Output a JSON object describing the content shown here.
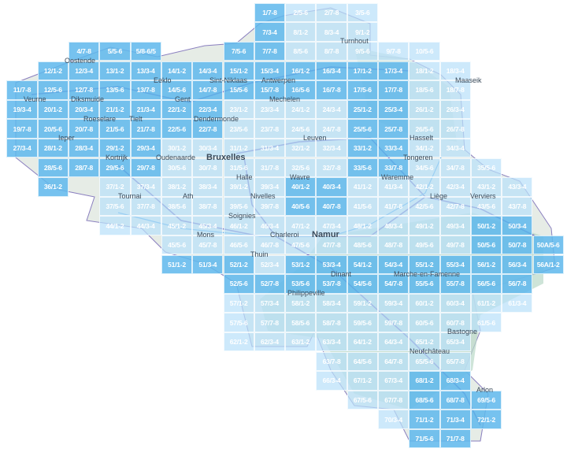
{
  "colors": {
    "dark_tile": "#60b8ec",
    "light_tile": "#bae0fa",
    "land": "#e6ece6",
    "forest": "#b9d8c8",
    "road": "#6a5fb8"
  },
  "cities": [
    "Oostende",
    "Veurne",
    "Diksmuide",
    "Ieper",
    "Roeselare",
    "Tielt",
    "Kortrijk",
    "Eeklo",
    "Gent",
    "Sint-Niklaas",
    "Antwerpen",
    "Turnhout",
    "Maaseik",
    "Mechelen",
    "Dendermonde",
    "Oudenaarde",
    "Bruxelles",
    "Halle",
    "Leuven",
    "Wavre",
    "Tongeren",
    "Waremme",
    "Liège",
    "Verviers",
    "Hasselt",
    "Tournai",
    "Ath",
    "Soignies",
    "Nivelles",
    "Mons",
    "Charleroi",
    "Namur",
    "Thuin",
    "Philippeville",
    "Dinant",
    "Marche-en-Famenne",
    "Bastogne",
    "Neufchâteau",
    "Arlon"
  ],
  "tile_grid": [
    [
      null,
      null,
      null,
      null,
      null,
      null,
      null,
      null,
      [
        "1/7-8",
        "dark"
      ],
      [
        "2/5-6",
        "light"
      ],
      [
        "2/7-8",
        "light"
      ],
      [
        "3/5-6",
        "light"
      ],
      null,
      null,
      null,
      null,
      null,
      null
    ],
    [
      null,
      null,
      null,
      null,
      null,
      null,
      null,
      null,
      [
        "7/3-4",
        "dark"
      ],
      [
        "8/1-2",
        "light"
      ],
      [
        "8/3-4",
        "light"
      ],
      [
        "9/1-2",
        "light"
      ],
      null,
      null,
      null,
      null,
      null,
      null
    ],
    [
      null,
      null,
      [
        "4/7-8",
        "dark"
      ],
      [
        "5/5-6",
        "dark"
      ],
      [
        "5/8-6/5",
        "dark"
      ],
      null,
      null,
      [
        "7/5-6",
        "dark"
      ],
      [
        "7/7-8",
        "dark"
      ],
      [
        "8/5-6",
        "light"
      ],
      [
        "8/7-8",
        "light"
      ],
      [
        "9/5-6",
        "light"
      ],
      [
        "9/7-8",
        "light"
      ],
      [
        "10/5-6",
        "light"
      ],
      null,
      null,
      null,
      null
    ],
    [
      null,
      [
        "12/1-2",
        "dark"
      ],
      [
        "12/3-4",
        "dark"
      ],
      [
        "13/1-2",
        "dark"
      ],
      [
        "13/3-4",
        "dark"
      ],
      [
        "14/1-2",
        "dark"
      ],
      [
        "14/3-4",
        "dark"
      ],
      [
        "15/1-2",
        "dark"
      ],
      [
        "15/3-4",
        "dark"
      ],
      [
        "16/1-2",
        "dark"
      ],
      [
        "16/3-4",
        "dark"
      ],
      [
        "17/1-2",
        "dark"
      ],
      [
        "17/3-4",
        "dark"
      ],
      [
        "18/1-2",
        "light"
      ],
      [
        "18/3-4",
        "light"
      ],
      null,
      null,
      null
    ],
    [
      [
        "11/7-8",
        "dark"
      ],
      [
        "12/5-6",
        "dark"
      ],
      [
        "12/7-8",
        "dark"
      ],
      [
        "13/5-6",
        "dark"
      ],
      [
        "13/7-8",
        "dark"
      ],
      [
        "14/5-6",
        "dark"
      ],
      [
        "14/7-8",
        "dark"
      ],
      [
        "15/5-6",
        "dark"
      ],
      [
        "15/7-8",
        "dark"
      ],
      [
        "16/5-6",
        "dark"
      ],
      [
        "16/7-8",
        "dark"
      ],
      [
        "17/5-6",
        "dark"
      ],
      [
        "17/7-8",
        "dark"
      ],
      [
        "18/5-6",
        "light"
      ],
      [
        "18/7-8",
        "light"
      ],
      null,
      null,
      null
    ],
    [
      [
        "19/3-4",
        "dark"
      ],
      [
        "20/1-2",
        "dark"
      ],
      [
        "20/3-4",
        "dark"
      ],
      [
        "21/1-2",
        "dark"
      ],
      [
        "21/3-4",
        "dark"
      ],
      [
        "22/1-2",
        "dark"
      ],
      [
        "22/3-4",
        "dark"
      ],
      [
        "23/1-2",
        "light"
      ],
      [
        "23/3-4",
        "light"
      ],
      [
        "24/1-2",
        "light"
      ],
      [
        "24/3-4",
        "light"
      ],
      [
        "25/1-2",
        "dark"
      ],
      [
        "25/3-4",
        "dark"
      ],
      [
        "26/1-2",
        "light"
      ],
      [
        "26/3-4",
        "light"
      ],
      null,
      null,
      null
    ],
    [
      [
        "19/7-8",
        "dark"
      ],
      [
        "20/5-6",
        "dark"
      ],
      [
        "20/7-8",
        "dark"
      ],
      [
        "21/5-6",
        "dark"
      ],
      [
        "21/7-8",
        "dark"
      ],
      [
        "22/5-6",
        "dark"
      ],
      [
        "22/7-8",
        "dark"
      ],
      [
        "23/5-6",
        "light"
      ],
      [
        "23/7-8",
        "light"
      ],
      [
        "24/5-6",
        "light"
      ],
      [
        "24/7-8",
        "light"
      ],
      [
        "25/5-6",
        "dark"
      ],
      [
        "25/7-8",
        "dark"
      ],
      [
        "26/5-6",
        "light"
      ],
      [
        "26/7-8",
        "light"
      ],
      null,
      null,
      null
    ],
    [
      [
        "27/3-4",
        "dark"
      ],
      [
        "28/1-2",
        "dark"
      ],
      [
        "28/3-4",
        "dark"
      ],
      [
        "29/1-2",
        "dark"
      ],
      [
        "29/3-4",
        "dark"
      ],
      [
        "30/1-2",
        "light"
      ],
      [
        "30/3-4",
        "light"
      ],
      [
        "31/1-2",
        "light"
      ],
      [
        "31/3-4",
        "light"
      ],
      [
        "32/1-2",
        "light"
      ],
      [
        "32/3-4",
        "light"
      ],
      [
        "33/1-2",
        "dark"
      ],
      [
        "33/3-4",
        "dark"
      ],
      [
        "34/1-2",
        "light"
      ],
      [
        "34/3-4",
        "light"
      ],
      null,
      null,
      null
    ],
    [
      null,
      [
        "28/5-6",
        "dark"
      ],
      [
        "28/7-8",
        "dark"
      ],
      [
        "29/5-6",
        "dark"
      ],
      [
        "29/7-8",
        "dark"
      ],
      [
        "30/5-6",
        "light"
      ],
      [
        "30/7-8",
        "light"
      ],
      [
        "31/5-6",
        "light"
      ],
      [
        "31/7-8",
        "light"
      ],
      [
        "32/5-6",
        "light"
      ],
      [
        "32/7-8",
        "light"
      ],
      [
        "33/5-6",
        "dark"
      ],
      [
        "33/7-8",
        "dark"
      ],
      [
        "34/5-6",
        "light"
      ],
      [
        "34/7-8",
        "light"
      ],
      [
        "35/5-6",
        "light"
      ],
      null,
      null
    ],
    [
      null,
      [
        "36/1-2",
        "dark"
      ],
      null,
      [
        "37/1-2",
        "light"
      ],
      [
        "37/3-4",
        "light"
      ],
      [
        "38/1-2",
        "light"
      ],
      [
        "38/3-4",
        "light"
      ],
      [
        "39/1-2",
        "light"
      ],
      [
        "39/3-4",
        "light"
      ],
      [
        "40/1-2",
        "dark"
      ],
      [
        "40/3-4",
        "dark"
      ],
      [
        "41/1-2",
        "light"
      ],
      [
        "41/3-4",
        "light"
      ],
      [
        "42/1-2",
        "light"
      ],
      [
        "42/3-4",
        "light"
      ],
      [
        "43/1-2",
        "light"
      ],
      [
        "43/3-4",
        "light"
      ],
      null
    ],
    [
      null,
      null,
      null,
      [
        "37/5-6",
        "light"
      ],
      [
        "37/7-8",
        "light"
      ],
      [
        "38/5-6",
        "light"
      ],
      [
        "38/7-8",
        "light"
      ],
      [
        "39/5-6",
        "light"
      ],
      [
        "39/7-8",
        "light"
      ],
      [
        "40/5-6",
        "dark"
      ],
      [
        "40/7-8",
        "dark"
      ],
      [
        "41/5-6",
        "light"
      ],
      [
        "41/7-8",
        "light"
      ],
      [
        "42/5-6",
        "light"
      ],
      [
        "42/7-8",
        "light"
      ],
      [
        "43/5-6",
        "light"
      ],
      [
        "43/7-8",
        "light"
      ],
      null
    ],
    [
      null,
      null,
      null,
      [
        "44/1-2",
        "light"
      ],
      [
        "44/3-4",
        "light"
      ],
      [
        "45/1-2",
        "light"
      ],
      [
        "45/3-4",
        "light"
      ],
      [
        "46/1-2",
        "light"
      ],
      [
        "46/3-4",
        "light"
      ],
      [
        "47/1-2",
        "light"
      ],
      [
        "47/3-4",
        "light"
      ],
      [
        "48/1-2",
        "light"
      ],
      [
        "48/3-4",
        "light"
      ],
      [
        "49/1-2",
        "light"
      ],
      [
        "49/3-4",
        "light"
      ],
      [
        "50/1-2",
        "dark"
      ],
      [
        "50/3-4",
        "dark"
      ],
      null
    ],
    [
      null,
      null,
      null,
      null,
      null,
      [
        "45/5-6",
        "light"
      ],
      [
        "45/7-8",
        "light"
      ],
      [
        "46/5-6",
        "light"
      ],
      [
        "46/7-8",
        "light"
      ],
      [
        "47/5-6",
        "light"
      ],
      [
        "47/7-8",
        "light"
      ],
      [
        "48/5-6",
        "light"
      ],
      [
        "48/7-8",
        "light"
      ],
      [
        "49/5-6",
        "light"
      ],
      [
        "49/7-8",
        "light"
      ],
      [
        "50/5-6",
        "dark"
      ],
      [
        "50/7-8",
        "dark"
      ],
      [
        "50A/5-6",
        "dark"
      ]
    ],
    [
      null,
      null,
      null,
      null,
      null,
      [
        "51/1-2",
        "dark"
      ],
      [
        "51/3-4",
        "dark"
      ],
      [
        "52/1-2",
        "dark"
      ],
      [
        "52/3-4",
        "light"
      ],
      [
        "53/1-2",
        "dark"
      ],
      [
        "53/3-4",
        "dark"
      ],
      [
        "54/1-2",
        "dark"
      ],
      [
        "54/3-4",
        "dark"
      ],
      [
        "55/1-2",
        "dark"
      ],
      [
        "55/3-4",
        "dark"
      ],
      [
        "56/1-2",
        "dark"
      ],
      [
        "56/3-4",
        "dark"
      ],
      [
        "56A/1-2",
        "dark"
      ]
    ],
    [
      null,
      null,
      null,
      null,
      null,
      null,
      null,
      [
        "52/5-6",
        "dark"
      ],
      [
        "52/7-8",
        "dark"
      ],
      [
        "53/5-6",
        "dark"
      ],
      [
        "53/7-8",
        "dark"
      ],
      [
        "54/5-6",
        "dark"
      ],
      [
        "54/7-8",
        "dark"
      ],
      [
        "55/5-6",
        "dark"
      ],
      [
        "55/7-8",
        "dark"
      ],
      [
        "56/5-6",
        "dark"
      ],
      [
        "56/7-8",
        "dark"
      ],
      null
    ],
    [
      null,
      null,
      null,
      null,
      null,
      null,
      null,
      [
        "57/1-2",
        "light"
      ],
      [
        "57/3-4",
        "light"
      ],
      [
        "58/1-2",
        "light"
      ],
      [
        "58/3-4",
        "light"
      ],
      [
        "59/1-2",
        "light"
      ],
      [
        "59/3-4",
        "light"
      ],
      [
        "60/1-2",
        "light"
      ],
      [
        "60/3-4",
        "light"
      ],
      [
        "61/1-2",
        "light"
      ],
      [
        "61/3-4",
        "light"
      ],
      null
    ],
    [
      null,
      null,
      null,
      null,
      null,
      null,
      null,
      [
        "57/5-6",
        "light"
      ],
      [
        "57/7-8",
        "light"
      ],
      [
        "58/5-6",
        "light"
      ],
      [
        "58/7-8",
        "light"
      ],
      [
        "59/5-6",
        "light"
      ],
      [
        "59/7-8",
        "light"
      ],
      [
        "60/5-6",
        "light"
      ],
      [
        "60/7-8",
        "light"
      ],
      [
        "61/5-6",
        "light"
      ],
      null,
      null
    ],
    [
      null,
      null,
      null,
      null,
      null,
      null,
      null,
      [
        "62/1-2",
        "light"
      ],
      [
        "62/3-4",
        "light"
      ],
      [
        "63/1-2",
        "light"
      ],
      [
        "63/3-4",
        "light"
      ],
      [
        "64/1-2",
        "light"
      ],
      [
        "64/3-4",
        "light"
      ],
      [
        "65/1-2",
        "light"
      ],
      [
        "65/3-4",
        "light"
      ],
      null,
      null,
      null
    ],
    [
      null,
      null,
      null,
      null,
      null,
      null,
      null,
      null,
      null,
      null,
      [
        "63/7-8",
        "light"
      ],
      [
        "64/5-6",
        "light"
      ],
      [
        "64/7-8",
        "light"
      ],
      [
        "65/5-6",
        "light"
      ],
      [
        "65/7-8",
        "light"
      ],
      null,
      null,
      null
    ],
    [
      null,
      null,
      null,
      null,
      null,
      null,
      null,
      null,
      null,
      null,
      [
        "66/3-4",
        "light"
      ],
      [
        "67/1-2",
        "light"
      ],
      [
        "67/3-4",
        "light"
      ],
      [
        "68/1-2",
        "dark"
      ],
      [
        "68/3-4",
        "dark"
      ],
      null,
      null,
      null
    ],
    [
      null,
      null,
      null,
      null,
      null,
      null,
      null,
      null,
      null,
      null,
      null,
      [
        "67/5-6",
        "light"
      ],
      [
        "67/7-8",
        "light"
      ],
      [
        "68/5-6",
        "dark"
      ],
      [
        "68/7-8",
        "dark"
      ],
      [
        "69/5-6",
        "dark"
      ],
      null,
      null
    ],
    [
      null,
      null,
      null,
      null,
      null,
      null,
      null,
      null,
      null,
      null,
      null,
      null,
      [
        "70/3-4",
        "light"
      ],
      [
        "71/1-2",
        "dark"
      ],
      [
        "71/3-4",
        "dark"
      ],
      [
        "72/1-2",
        "dark"
      ],
      null,
      null
    ],
    [
      null,
      null,
      null,
      null,
      null,
      null,
      null,
      null,
      null,
      null,
      null,
      null,
      null,
      [
        "71/5-6",
        "dark"
      ],
      [
        "71/7-8",
        "dark"
      ],
      null,
      null,
      null
    ]
  ]
}
